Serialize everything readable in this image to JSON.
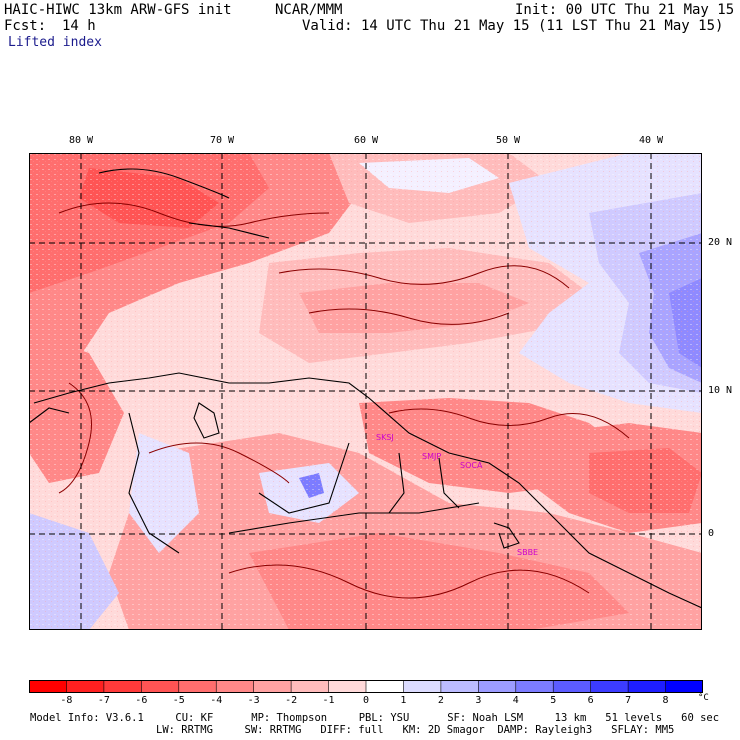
{
  "header": {
    "model_title": "HAIC-HIWC 13km ARW-GFS init",
    "org": "NCAR/MMM",
    "init": "Init: 00 UTC Thu 21 May 15",
    "fcst_label": "Fcst:",
    "fcst_value": "14 h",
    "valid": "Valid: 14 UTC Thu 21 May 15 (11 LST Thu 21 May 15)",
    "field": "Lifted index"
  },
  "map": {
    "lon_labels": [
      "80 W",
      "70 W",
      "60 W",
      "50 W",
      "40 W"
    ],
    "lat_labels": [
      "20 N",
      "10 N",
      "0"
    ],
    "stations": [
      "SKSJ",
      "SMJP",
      "SOCA",
      "SBBE"
    ],
    "colors": {
      "coast": "#000000",
      "contour": "#8b0000",
      "grid": "#000000",
      "station": "#cc00cc"
    }
  },
  "colorbar": {
    "labels": [
      "-8",
      "-7",
      "-6",
      "-5",
      "-4",
      "-3",
      "-2",
      "-1",
      "0",
      "1",
      "2",
      "3",
      "4",
      "5",
      "6",
      "7",
      "8"
    ],
    "unit": "°C",
    "colors": [
      "#ff0000",
      "#ff2020",
      "#ff3a3a",
      "#ff5454",
      "#ff6e6e",
      "#ff8888",
      "#ffa2a2",
      "#ffbcbc",
      "#ffdada",
      "#ffffff",
      "#dcdcff",
      "#bcbcff",
      "#9c9cff",
      "#7c7cff",
      "#5c5cff",
      "#3c3cff",
      "#1e1eff",
      "#0000ff"
    ]
  },
  "model_info": {
    "line1": "Model Info: V3.6.1     CU: KF      MP: Thompson     PBL: YSU      SF: Noah LSM     13 km   51 levels   60 sec",
    "line2": "LW: RRTMG     SW: RRTMG   DIFF: full   KM: 2D Smagor  DAMP: Rayleigh3   SFLAY: MM5"
  }
}
